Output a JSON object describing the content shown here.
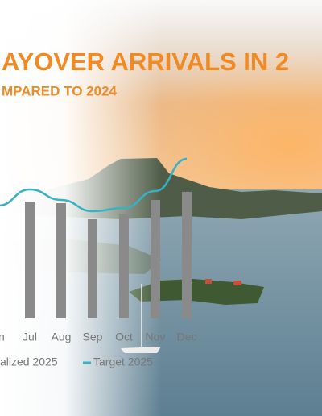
{
  "chart_data": {
    "type": "bar",
    "title": "AYOVER ARRIVALS IN 2",
    "subtitle": "MPARED TO 2024",
    "categories": [
      "un",
      "Jul",
      "Aug",
      "Sep",
      "Oct",
      "Nov",
      "Dec"
    ],
    "series": [
      {
        "name": "alized 2025",
        "type": "bar",
        "color": "#8a8a8a",
        "values": [
          null,
          145,
          143,
          123,
          130,
          147,
          157
        ]
      },
      {
        "name": "Target 2025",
        "type": "line",
        "color": "#35b2c4",
        "values": [
          140,
          160,
          147,
          133,
          137,
          158,
          198
        ]
      }
    ],
    "ylim": [
      0,
      200
    ]
  }
}
